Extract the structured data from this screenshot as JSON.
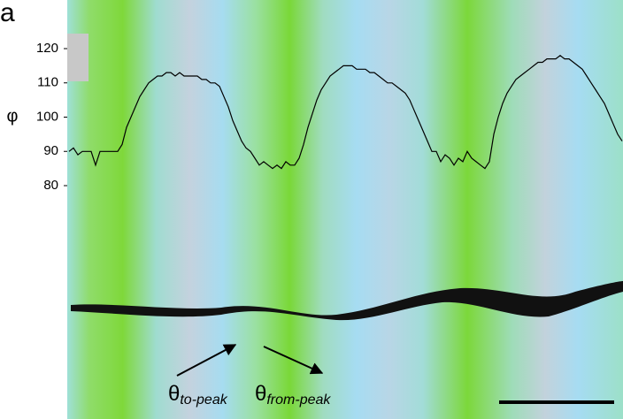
{
  "chart_data": {
    "type": "line",
    "panel_label": "a",
    "y_label": "φ",
    "ylim": [
      80,
      120
    ],
    "yticks": [
      80,
      90,
      100,
      110,
      120
    ],
    "series": [
      {
        "color": "#000000",
        "values": [
          90,
          91,
          89,
          90,
          90,
          90,
          86,
          90,
          90,
          90,
          90,
          90,
          92,
          97,
          100,
          103,
          106,
          108,
          110,
          111,
          112,
          112,
          113,
          113,
          112,
          113,
          112,
          112,
          112,
          112,
          111,
          111,
          110,
          110,
          109,
          106,
          103,
          99,
          96,
          93,
          91,
          90,
          88,
          86,
          87,
          86,
          85,
          86,
          85,
          87,
          86,
          86,
          88,
          92,
          97,
          101,
          105,
          108,
          110,
          112,
          113,
          114,
          115,
          115,
          115,
          114,
          114,
          114,
          113,
          113,
          112,
          111,
          110,
          110,
          109,
          108,
          107,
          105,
          102,
          99,
          96,
          93,
          90,
          90,
          87,
          89,
          88,
          86,
          88,
          87,
          90,
          88,
          87,
          86,
          85,
          87,
          95,
          100,
          104,
          107,
          109,
          111,
          112,
          113,
          114,
          115,
          116,
          116,
          117,
          117,
          117,
          118,
          117,
          117,
          116,
          115,
          114,
          112,
          110,
          108,
          106,
          104,
          101,
          98,
          95,
          93
        ]
      }
    ],
    "annotations": [
      {
        "symbol": "θ",
        "subscript": "to-peak"
      },
      {
        "symbol": "θ",
        "subscript": "from-peak"
      }
    ]
  }
}
